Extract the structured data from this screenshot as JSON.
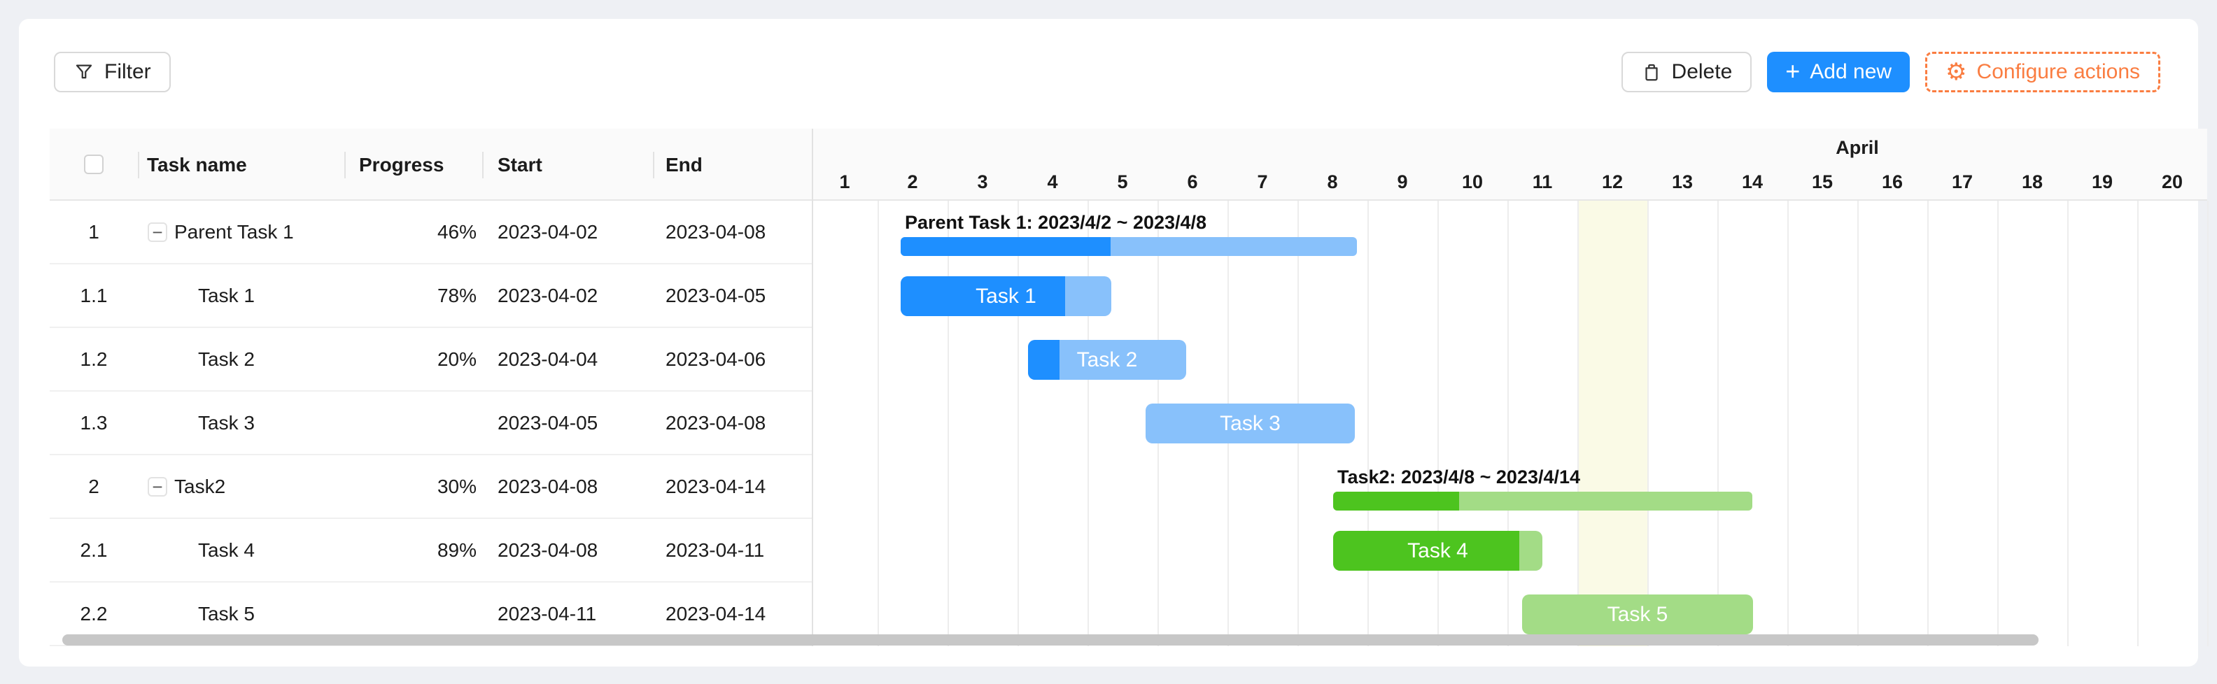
{
  "colors": {
    "accent": "#1e8fff",
    "bar_blue": "#1e8fff",
    "bar_blue_light": "#88c1fb",
    "bar_green": "#4dc41f",
    "bar_green_light": "#a3dc86",
    "orange": "#fa7d41",
    "highlight_column": "#fafae6",
    "header_bg": "#fafafa",
    "grid_line": "#ededed",
    "row_border": "#f0f0f0",
    "scrollbar": "#c7c7c7"
  },
  "toolbar": {
    "filter_label": "Filter",
    "delete_label": "Delete",
    "add_new_label": "Add new",
    "add_new_plus": "+",
    "configure_label": "Configure actions",
    "gear_glyph": "⚙"
  },
  "table": {
    "columns": [
      {
        "key": "name",
        "label": "Task name"
      },
      {
        "key": "progress",
        "label": "Progress"
      },
      {
        "key": "start",
        "label": "Start"
      },
      {
        "key": "end",
        "label": "End"
      }
    ],
    "rows": [
      {
        "seq": "1",
        "name": "Parent Task 1",
        "parent": true,
        "collapse_glyph": "−",
        "progress": "46%",
        "start": "2023-04-02",
        "end": "2023-04-08"
      },
      {
        "seq": "1.1",
        "name": "Task 1",
        "parent": false,
        "progress": "78%",
        "start": "2023-04-02",
        "end": "2023-04-05"
      },
      {
        "seq": "1.2",
        "name": "Task 2",
        "parent": false,
        "progress": "20%",
        "start": "2023-04-04",
        "end": "2023-04-06"
      },
      {
        "seq": "1.3",
        "name": "Task 3",
        "parent": false,
        "progress": "",
        "start": "2023-04-05",
        "end": "2023-04-08"
      },
      {
        "seq": "2",
        "name": "Task2",
        "parent": true,
        "collapse_glyph": "−",
        "progress": "30%",
        "start": "2023-04-08",
        "end": "2023-04-14"
      },
      {
        "seq": "2.1",
        "name": "Task 4",
        "parent": false,
        "progress": "89%",
        "start": "2023-04-08",
        "end": "2023-04-11"
      },
      {
        "seq": "2.2",
        "name": "Task 5",
        "parent": false,
        "progress": "",
        "start": "2023-04-11",
        "end": "2023-04-14"
      }
    ]
  },
  "gantt": {
    "month_label": "April",
    "days": [
      "1",
      "2",
      "3",
      "4",
      "5",
      "6",
      "7",
      "8",
      "9",
      "10",
      "11",
      "12",
      "13",
      "14",
      "15",
      "16",
      "17",
      "18",
      "19",
      "20"
    ],
    "highlighted_day": 12,
    "bars": [
      {
        "row": 0,
        "kind": "group",
        "scheme": "blue",
        "start_day": 1.33,
        "end_day": 7.85,
        "progress": 0.46,
        "caption": "Parent Task 1: 2023/4/2 ~ 2023/4/8"
      },
      {
        "row": 1,
        "kind": "task",
        "scheme": "blue",
        "start_day": 1.33,
        "end_day": 4.34,
        "progress": 0.78,
        "label": "Task 1"
      },
      {
        "row": 2,
        "kind": "task",
        "scheme": "blue",
        "start_day": 3.15,
        "end_day": 5.41,
        "progress": 0.2,
        "label": "Task 2"
      },
      {
        "row": 3,
        "kind": "task",
        "scheme": "blue",
        "start_day": 4.83,
        "end_day": 7.82,
        "progress": 0,
        "label": "Task 3"
      },
      {
        "row": 4,
        "kind": "group",
        "scheme": "green",
        "start_day": 7.51,
        "end_day": 13.5,
        "progress": 0.3,
        "caption": "Task2: 2023/4/8 ~ 2023/4/14"
      },
      {
        "row": 5,
        "kind": "task",
        "scheme": "green",
        "start_day": 7.51,
        "end_day": 10.5,
        "progress": 0.89,
        "label": "Task 4"
      },
      {
        "row": 6,
        "kind": "task",
        "scheme": "green",
        "start_day": 10.21,
        "end_day": 13.51,
        "progress": 0,
        "label": "Task 5"
      }
    ]
  }
}
